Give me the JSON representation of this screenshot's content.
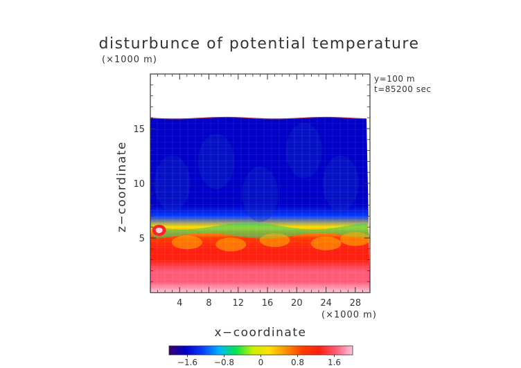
{
  "chart_data": {
    "type": "heatmap",
    "title": "disturbunce of potential temperature",
    "x_unit_label": "(×1000 m)",
    "z_unit_label": "(×1000 m)",
    "xlabel": "x−coordinate",
    "ylabel": "z−coordinate",
    "annotations": [
      "y=100 m",
      "t=85200 sec"
    ],
    "xlim": [
      0,
      30
    ],
    "ylim": [
      0,
      20
    ],
    "x_ticks": [
      4,
      8,
      12,
      16,
      20,
      24,
      28
    ],
    "x_tick_labels": [
      "4",
      "8",
      "12",
      "16",
      "20",
      "24",
      "28"
    ],
    "y_ticks": [
      5,
      10,
      15
    ],
    "y_tick_labels": [
      "5",
      "10",
      "15"
    ],
    "field_top_z": 16,
    "colorbar": {
      "range": [
        -2.0,
        2.0
      ],
      "ticks": [
        -1.6,
        -0.8,
        0,
        0.8,
        1.6
      ],
      "tick_labels": [
        "−1.6",
        "−0.8",
        "0",
        "0.8",
        "1.6"
      ]
    },
    "vertical_profile": {
      "z": [
        0,
        1,
        2,
        3,
        4,
        5,
        6,
        7,
        8,
        10,
        12,
        14,
        16
      ],
      "value": [
        1.9,
        1.6,
        1.5,
        1.3,
        1.1,
        0.9,
        0.1,
        -1.4,
        -1.5,
        -1.6,
        -1.7,
        -1.75,
        -1.8
      ]
    },
    "colors": {
      "colormap": [
        "#3a0070",
        "#0000c8",
        "#0a3cff",
        "#00b4ff",
        "#00e650",
        "#c8f000",
        "#ffe000",
        "#ff9000",
        "#ff3c00",
        "#ff2010",
        "#ff5a78",
        "#ffc8dc"
      ],
      "axis": "#333333"
    }
  }
}
